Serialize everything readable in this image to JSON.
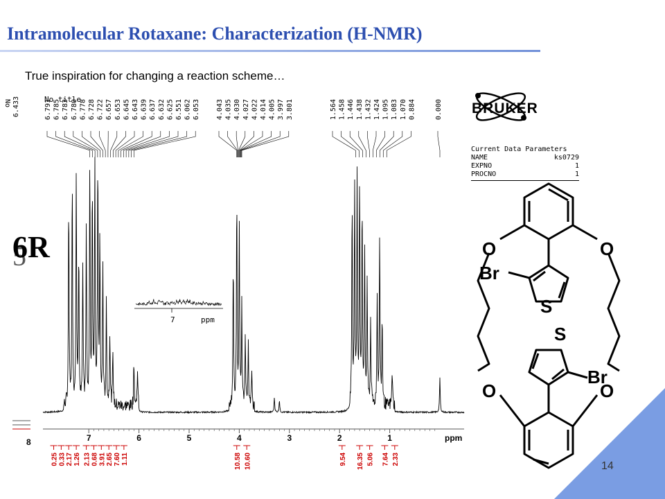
{
  "slide": {
    "title": "Intramolecular Rotaxane: Characterization (H-NMR)",
    "subtitle": "True inspiration for changing a reaction scheme…",
    "page_number": "14",
    "compound_label": "6R",
    "compound_label_ghost": "5",
    "accent_color": "#2d4fb0",
    "corner_color": "#7a9de3"
  },
  "bruker": {
    "logo_text": "BRUKER",
    "params_header": "Current Data Parameters",
    "params": [
      {
        "key": "NAME",
        "value": "ks0729"
      },
      {
        "key": "EXPNO",
        "value": "1"
      },
      {
        "key": "PROCNO",
        "value": "1"
      }
    ]
  },
  "molecule": {
    "atom_labels": [
      "O",
      "O",
      "Br",
      "S",
      "S",
      "Br",
      "O",
      "O"
    ]
  },
  "chart_data": {
    "type": "line",
    "title": "No title",
    "left_title_fragment": "No",
    "left_labels_fragment": [
      "6.433"
    ],
    "xlabel": "ppm",
    "x_reversed": true,
    "xlim": [
      8.2,
      -0.5
    ],
    "x_ticks": [
      7,
      6,
      5,
      4,
      3,
      2,
      1
    ],
    "x_tick_left_fragment": "8",
    "peak_labels_aromatic": [
      "6.791",
      "6.785",
      "6.783",
      "6.780",
      "6.778",
      "6.728",
      "6.722",
      "6.657",
      "6.653",
      "6.645",
      "6.643",
      "6.639",
      "6.637",
      "6.632",
      "6.625",
      "6.551",
      "6.062",
      "6.053"
    ],
    "peak_labels_ether": [
      "4.043",
      "4.035",
      "4.030",
      "4.027",
      "4.022",
      "4.014",
      "4.005",
      "3.997",
      "3.801"
    ],
    "peak_labels_aliphatic": [
      "1.564",
      "1.458",
      "1.446",
      "1.438",
      "1.432",
      "1.424",
      "1.095",
      "1.083",
      "1.070",
      "0.884"
    ],
    "peak_labels_tms": [
      "0.000"
    ],
    "integrals": [
      {
        "ppm": 7.7,
        "value": "0.25"
      },
      {
        "ppm": 7.55,
        "value": "0.33"
      },
      {
        "ppm": 7.4,
        "value": "2.17"
      },
      {
        "ppm": 7.25,
        "value": "1.26"
      },
      {
        "ppm": 7.05,
        "value": "2.13"
      },
      {
        "ppm": 6.9,
        "value": "0.68"
      },
      {
        "ppm": 6.75,
        "value": "3.91"
      },
      {
        "ppm": 6.6,
        "value": "2.65"
      },
      {
        "ppm": 6.45,
        "value": "7.60"
      },
      {
        "ppm": 6.3,
        "value": "1.11"
      },
      {
        "ppm": 4.05,
        "value": "10.58"
      },
      {
        "ppm": 3.85,
        "value": "10.60"
      },
      {
        "ppm": 1.95,
        "value": "9.54"
      },
      {
        "ppm": 1.6,
        "value": "16.35"
      },
      {
        "ppm": 1.4,
        "value": "5.06"
      },
      {
        "ppm": 1.1,
        "value": "7.64"
      },
      {
        "ppm": 0.9,
        "value": "2.33"
      }
    ],
    "peaks": [
      {
        "ppm": 7.4,
        "height": 0.82
      },
      {
        "ppm": 7.33,
        "height": 0.9
      },
      {
        "ppm": 7.25,
        "height": 0.95
      },
      {
        "ppm": 7.2,
        "height": 0.6
      },
      {
        "ppm": 7.12,
        "height": 0.55
      },
      {
        "ppm": 7.05,
        "height": 0.7
      },
      {
        "ppm": 6.98,
        "height": 0.95
      },
      {
        "ppm": 6.93,
        "height": 0.88
      },
      {
        "ppm": 6.88,
        "height": 0.97
      },
      {
        "ppm": 6.82,
        "height": 0.99
      },
      {
        "ppm": 6.78,
        "height": 0.65
      },
      {
        "ppm": 6.72,
        "height": 0.55
      },
      {
        "ppm": 6.65,
        "height": 0.4
      },
      {
        "ppm": 6.58,
        "height": 0.3
      },
      {
        "ppm": 6.52,
        "height": 0.22
      },
      {
        "ppm": 6.1,
        "height": 0.18
      },
      {
        "ppm": 6.03,
        "height": 0.15
      },
      {
        "ppm": 4.12,
        "height": 0.58
      },
      {
        "ppm": 4.05,
        "height": 0.83
      },
      {
        "ppm": 4.0,
        "height": 0.72
      },
      {
        "ppm": 3.95,
        "height": 0.4
      },
      {
        "ppm": 3.88,
        "height": 0.3
      },
      {
        "ppm": 3.82,
        "height": 0.25
      },
      {
        "ppm": 3.75,
        "height": 0.15
      },
      {
        "ppm": 3.3,
        "height": 0.06
      },
      {
        "ppm": 3.2,
        "height": 0.05
      },
      {
        "ppm": 1.75,
        "height": 0.82
      },
      {
        "ppm": 1.7,
        "height": 0.85
      },
      {
        "ppm": 1.65,
        "height": 0.92
      },
      {
        "ppm": 1.6,
        "height": 0.88
      },
      {
        "ppm": 1.55,
        "height": 0.8
      },
      {
        "ppm": 1.5,
        "height": 0.6
      },
      {
        "ppm": 1.45,
        "height": 0.5
      },
      {
        "ppm": 1.38,
        "height": 0.35
      },
      {
        "ppm": 1.25,
        "height": 0.45
      },
      {
        "ppm": 1.2,
        "height": 0.68
      },
      {
        "ppm": 1.15,
        "height": 0.35
      },
      {
        "ppm": 0.95,
        "height": 0.15
      },
      {
        "ppm": 0.0,
        "height": 0.14
      }
    ]
  }
}
